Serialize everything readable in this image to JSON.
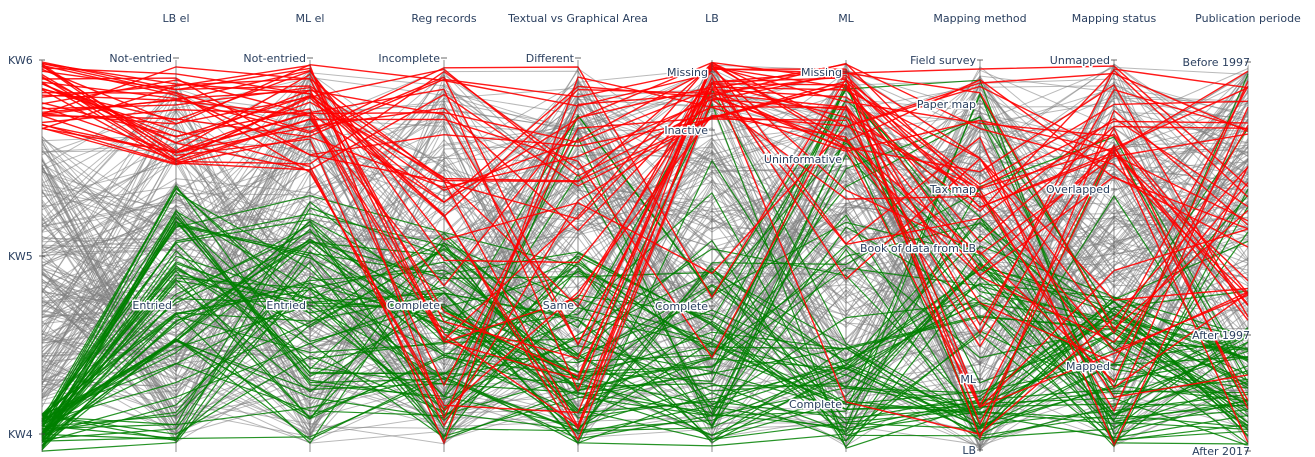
{
  "chart_data": {
    "type": "parallel-categories",
    "colors": {
      "KW4": "#008000",
      "KW5": "#808080",
      "KW6": "#ff0000"
    },
    "axes": [
      {
        "id": "KW",
        "title": "",
        "categories": [
          "KW6",
          "KW5",
          "KW4"
        ]
      },
      {
        "id": "LB el",
        "title": "LB el",
        "categories": [
          "Not-entried",
          "Entried"
        ]
      },
      {
        "id": "ML el",
        "title": "ML el",
        "categories": [
          "Not-entried",
          "Entried"
        ]
      },
      {
        "id": "Reg records",
        "title": "Reg records",
        "categories": [
          "Incomplete",
          "Complete"
        ]
      },
      {
        "id": "Textual vs Graphical Area",
        "title": "Textual vs Graphical Area",
        "categories": [
          "Different",
          "Same"
        ]
      },
      {
        "id": "LB",
        "title": "LB",
        "categories": [
          "Missing",
          "Inactive",
          "Complete"
        ]
      },
      {
        "id": "ML",
        "title": "ML",
        "categories": [
          "Missing",
          "Uninformative",
          "Complete"
        ]
      },
      {
        "id": "Mapping method",
        "title": "Mapping method",
        "categories": [
          "Field survey",
          "Paper map",
          "Tax map",
          "Book of data from LB",
          "ML",
          "LB"
        ]
      },
      {
        "id": "Mapping status",
        "title": "Mapping status",
        "categories": [
          "Unmapped",
          "Overlapped",
          "Mapped"
        ]
      },
      {
        "id": "Publication periode",
        "title": "Publication periode",
        "categories": [
          "Before 1997",
          "After 1997",
          "After 2017"
        ]
      }
    ],
    "category_proportions": {
      "KW": [
        0.18,
        0.72,
        0.1
      ],
      "LB el": [
        0.28,
        0.72
      ],
      "ML el": [
        0.3,
        0.7
      ],
      "Reg records": [
        0.42,
        0.58
      ],
      "Textual vs Graphical Area": [
        0.47,
        0.53
      ],
      "LB": [
        0.16,
        0.34,
        0.5
      ],
      "ML": [
        0.25,
        0.45,
        0.3
      ],
      "Mapping method": [
        0.31,
        0.2,
        0.13,
        0.2,
        0.14,
        0.02
      ],
      "Mapping status": [
        0.32,
        0.27,
        0.41
      ],
      "Publication periode": [
        0.5,
        0.17,
        0.33
      ]
    }
  }
}
